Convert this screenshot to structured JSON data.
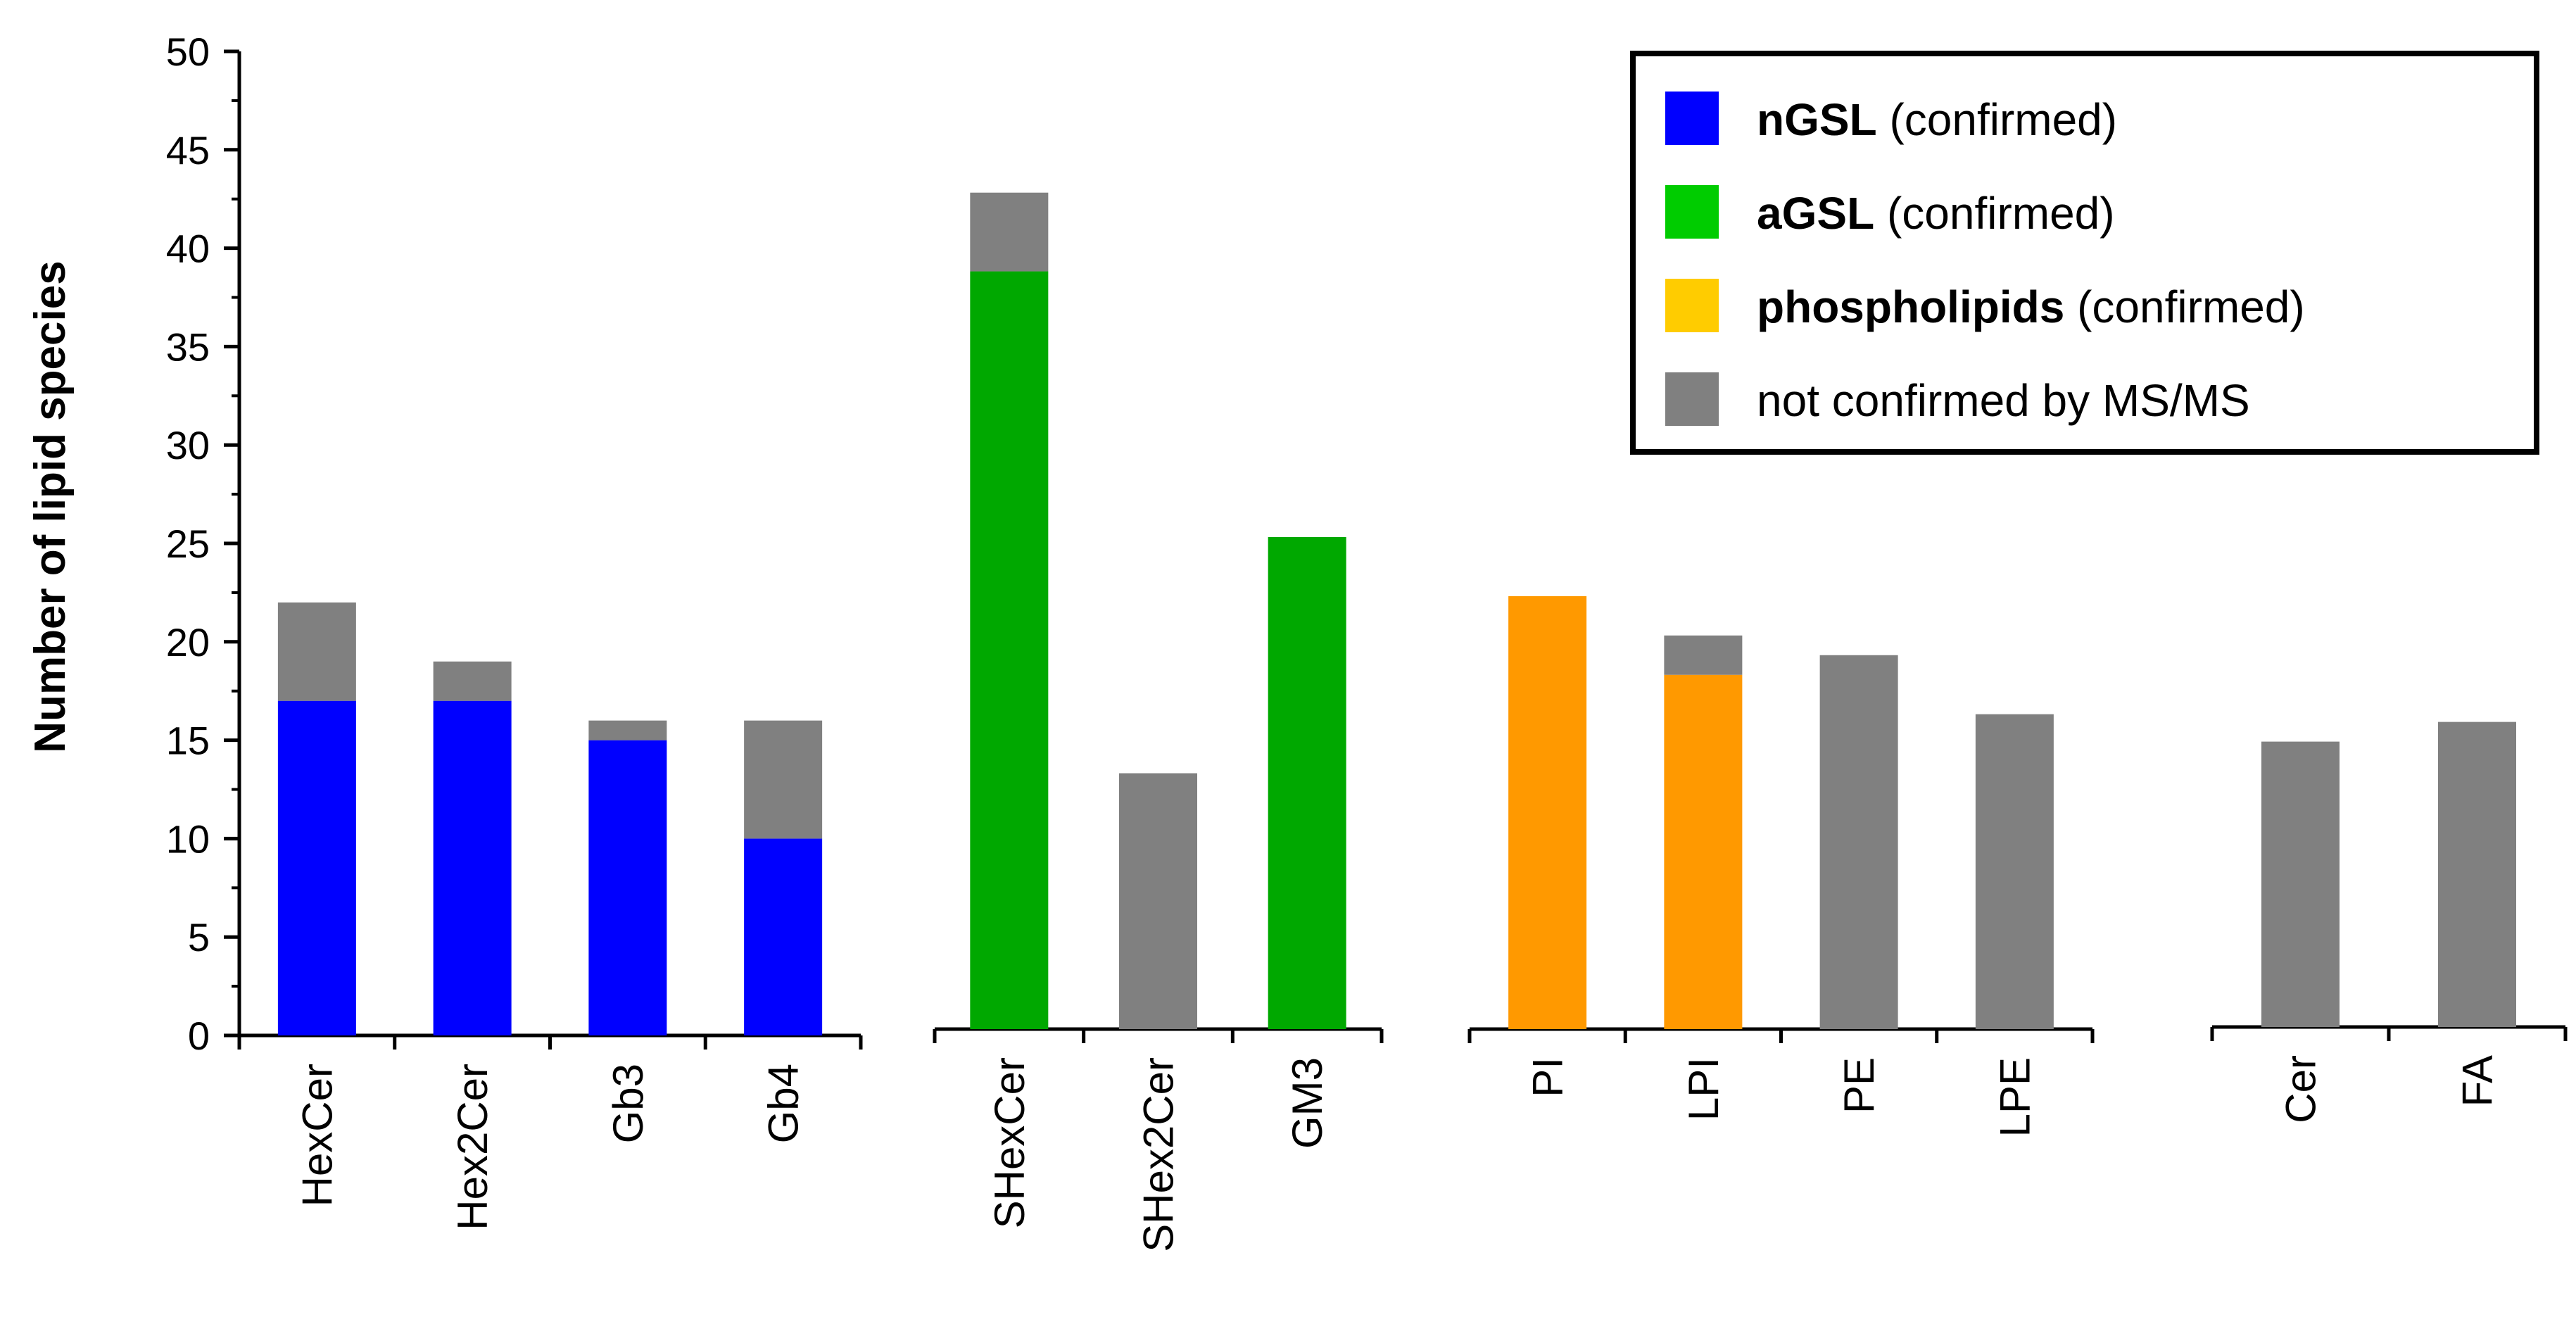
{
  "chart_data": {
    "type": "bar",
    "stacked": true,
    "ylabel": "Number of lipid species",
    "xlabel": "",
    "title": "",
    "ylim": [
      0,
      50
    ],
    "yticks": [
      0,
      5,
      10,
      15,
      20,
      25,
      30,
      35,
      40,
      45,
      50
    ],
    "grid": false,
    "legend_position": "top-right",
    "groups": [
      {
        "categories": [
          "HexCer",
          "Hex2Cer",
          "Gb3",
          "Gb4"
        ],
        "confirmed": [
          17,
          17,
          15,
          10
        ],
        "not_confirmed": [
          5,
          2,
          1,
          6
        ],
        "confirmed_series": "nGSL"
      },
      {
        "categories": [
          "SHexCer",
          "SHex2Cer",
          "GM3"
        ],
        "confirmed": [
          38.5,
          0,
          25
        ],
        "not_confirmed": [
          4,
          13,
          0
        ],
        "confirmed_series": "aGSL"
      },
      {
        "categories": [
          "PI",
          "LPI",
          "PE",
          "LPE"
        ],
        "confirmed": [
          22,
          18,
          0,
          0
        ],
        "not_confirmed": [
          0,
          2,
          19,
          16
        ],
        "confirmed_series": "phospholipids"
      },
      {
        "categories": [
          "Cer",
          "FA"
        ],
        "confirmed": [
          0,
          0
        ],
        "not_confirmed": [
          14.5,
          15.5
        ],
        "confirmed_series": "none"
      }
    ],
    "series_colors": {
      "nGSL": "#0000ff",
      "aGSL": "#00a800",
      "phospholipids": "#ff9900",
      "not_confirmed": "#808080"
    },
    "legend": [
      {
        "key": "nGSL",
        "bold": "nGSL",
        "rest": " (confirmed)",
        "color": "#0000ff"
      },
      {
        "key": "aGSL",
        "bold": "aGSL",
        "rest": " (confirmed)",
        "color": "#00cc00"
      },
      {
        "key": "phospholipids",
        "bold": "phospholipids",
        "rest": " (confirmed)",
        "color": "#ffcc00"
      },
      {
        "key": "not_confirmed",
        "bold": "",
        "rest": "not confirmed by MS/MS",
        "color": "#808080"
      }
    ]
  }
}
